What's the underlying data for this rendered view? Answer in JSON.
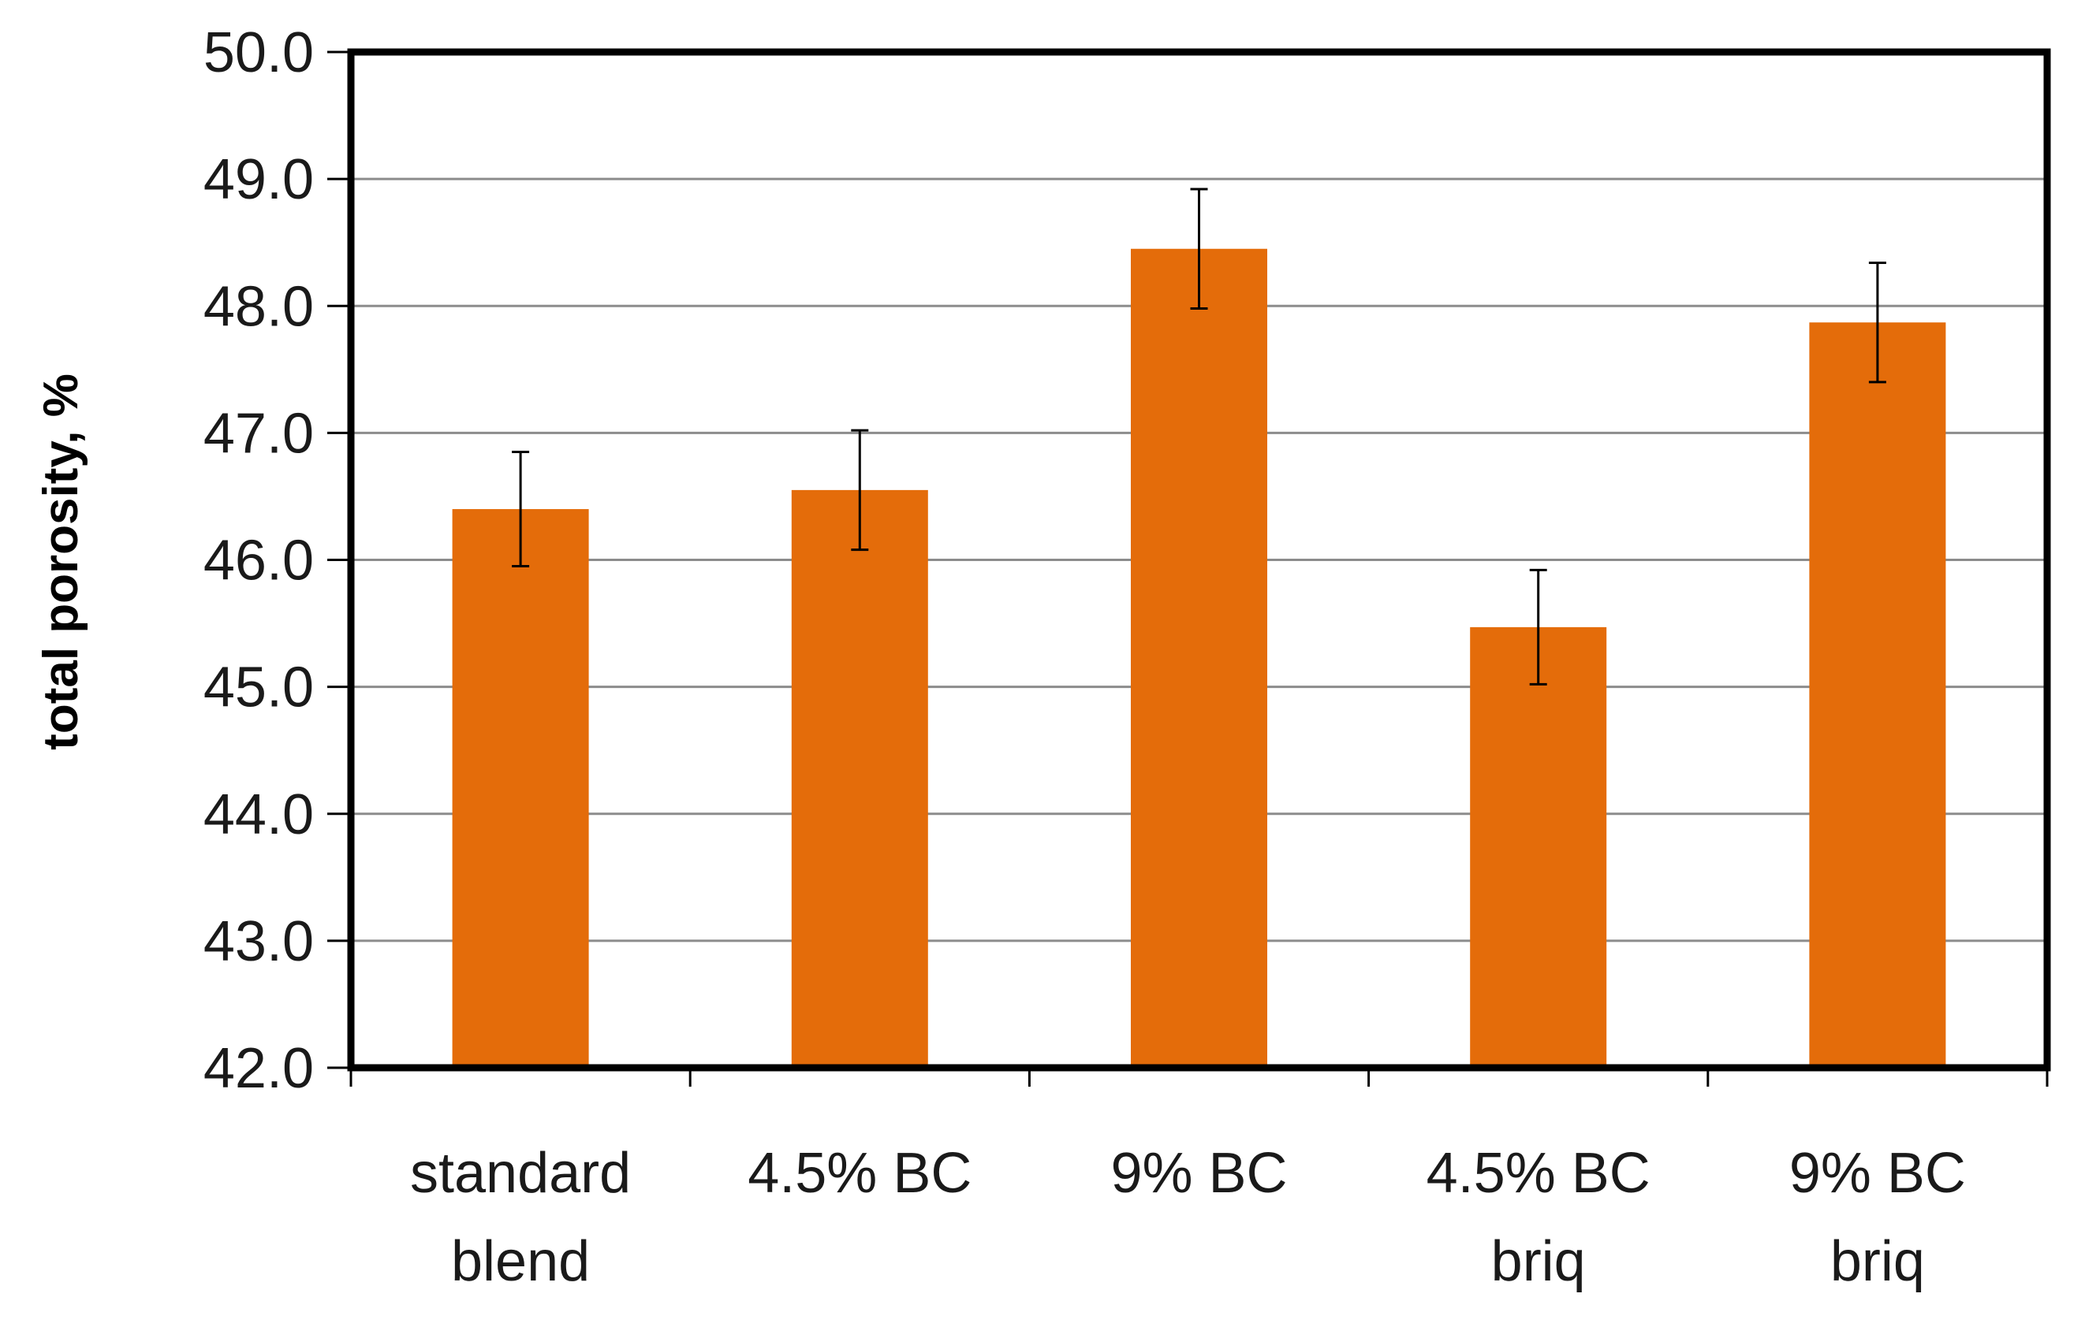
{
  "chart_data": {
    "type": "bar",
    "title": "",
    "xlabel": "",
    "ylabel": "total porosity, %",
    "ylim": [
      42.0,
      50.0
    ],
    "yticks": [
      "42.0",
      "43.0",
      "44.0",
      "45.0",
      "46.0",
      "47.0",
      "48.0",
      "49.0",
      "50.0"
    ],
    "categories": [
      [
        "standard",
        "blend"
      ],
      [
        "4.5% BC"
      ],
      [
        "9% BC"
      ],
      [
        "4.5% BC",
        "briq"
      ],
      [
        "9% BC",
        "briq"
      ]
    ],
    "values": [
      46.4,
      46.55,
      48.45,
      45.47,
      47.87
    ],
    "error": [
      0.45,
      0.47,
      0.47,
      0.45,
      0.47
    ],
    "grid": true,
    "legend": "none",
    "colors": {
      "bar": "#E46C0A",
      "grid": "#8C8C8C",
      "frame": "#000000",
      "error_bar": "#000000"
    }
  }
}
